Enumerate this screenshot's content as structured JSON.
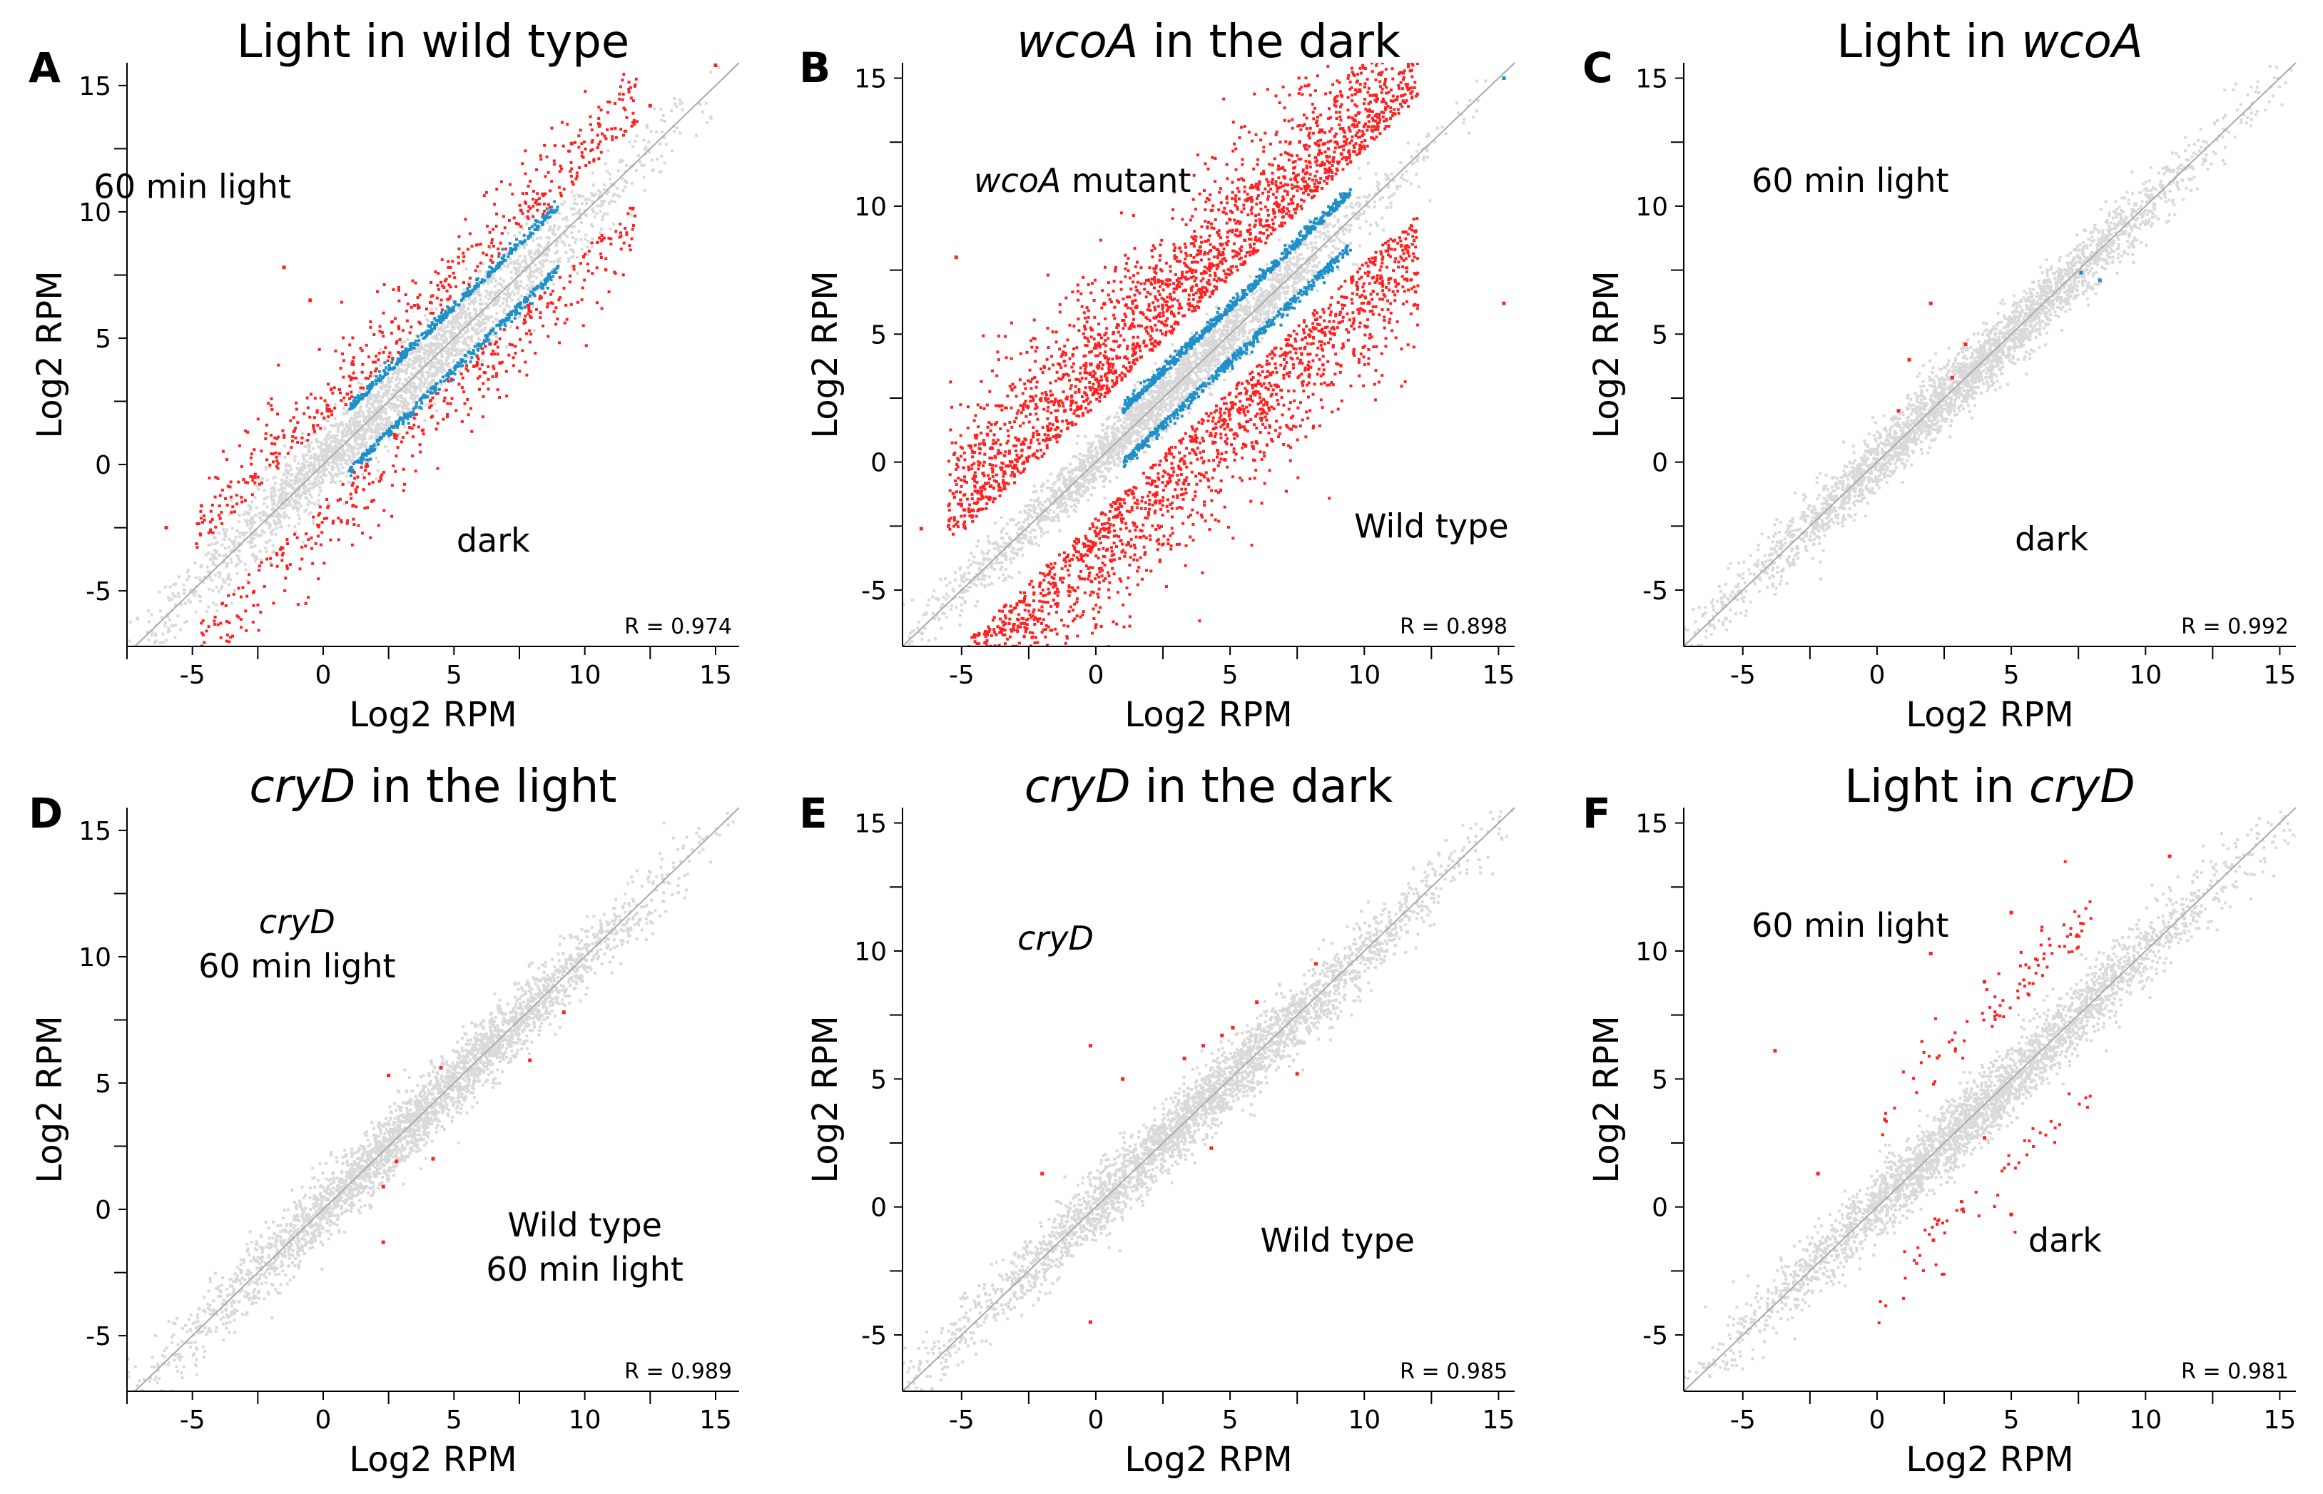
{
  "chart_data": [
    {
      "type": "scatter",
      "panel": "A",
      "title": [
        {
          "text": "Light in wild type",
          "italic": false
        }
      ],
      "xlabel": "Log2 RPM",
      "ylabel": "Log2 RPM",
      "xlim": [
        -7.5,
        15.9
      ],
      "ylim": [
        -7.2,
        15.9
      ],
      "xticks": [
        -5,
        0,
        5,
        10,
        15
      ],
      "yticks": [
        -5,
        0,
        5,
        10,
        15
      ],
      "grid": false,
      "diagonal": true,
      "annotations": [
        {
          "lines": [
            [
              {
                "text": "60 min light",
                "italic": false
              }
            ]
          ],
          "x": -5,
          "y": 11
        },
        {
          "lines": [
            [
              {
                "text": "dark",
                "italic": false
              }
            ]
          ],
          "x": 6.5,
          "y": -3
        }
      ],
      "r_label": "R = 0.974",
      "point_clouds": [
        {
          "name": "not significant",
          "color": "#d9d9d9",
          "x_range": [
            -7.2,
            13
          ],
          "spread": 0.7,
          "count": 2600
        },
        {
          "name": "moderate change",
          "color": "#1f8fc9",
          "x_range": [
            1,
            9
          ],
          "offset": 1.1,
          "spread": 0.2,
          "count": 700
        },
        {
          "name": "significant change",
          "color": "#ff2020",
          "x_range": [
            -5,
            12
          ],
          "offset": 1.5,
          "spread": 1.3,
          "count": 900
        }
      ],
      "extra_points": [
        {
          "x": 15,
          "y": 15.8,
          "color": "#ff2020"
        },
        {
          "x": 12.5,
          "y": 14.2,
          "color": "#ff2020"
        },
        {
          "x": 9.5,
          "y": 12.7,
          "color": "#ff2020"
        },
        {
          "x": -1.5,
          "y": 7.8,
          "color": "#ff2020"
        },
        {
          "x": -0.5,
          "y": 6.5,
          "color": "#ff2020"
        },
        {
          "x": -6,
          "y": -2.5,
          "color": "#ff2020"
        },
        {
          "x": -7.1,
          "y": -6.1,
          "color": "#d9d9d9"
        }
      ]
    },
    {
      "type": "scatter",
      "panel": "B",
      "title": [
        {
          "text": "wcoA",
          "italic": true
        },
        {
          "text": " in the dark",
          "italic": false
        }
      ],
      "xlabel": "Log2 RPM",
      "ylabel": "Log2 RPM",
      "xlim": [
        -7.2,
        15.6
      ],
      "ylim": [
        -7.2,
        15.6
      ],
      "xticks": [
        -5,
        0,
        5,
        10,
        15
      ],
      "yticks": [
        -5,
        0,
        5,
        10,
        15
      ],
      "grid": false,
      "diagonal": true,
      "annotations": [
        {
          "lines": [
            [
              {
                "text": "wcoA",
                "italic": true
              },
              {
                "text": " mutant",
                "italic": false
              }
            ]
          ],
          "x": -0.5,
          "y": 11
        },
        {
          "lines": [
            [
              {
                "text": "Wild type",
                "italic": false
              }
            ]
          ],
          "x": 12.5,
          "y": -2.5
        }
      ],
      "r_label": "R = 0.898",
      "point_clouds": [
        {
          "name": "not significant",
          "color": "#d9d9d9",
          "x_range": [
            -6.8,
            12
          ],
          "spread": 0.5,
          "count": 2600
        },
        {
          "name": "moderate change",
          "color": "#1f8fc9",
          "x_range": [
            1,
            9.5
          ],
          "offset": 0.9,
          "spread": 0.2,
          "count": 1100
        },
        {
          "name": "significant change",
          "color": "#ff2020",
          "x_range": [
            -5.5,
            12
          ],
          "offset": 2.2,
          "spread": 2.2,
          "count": 4000
        }
      ],
      "extra_points": [
        {
          "x": 15.2,
          "y": 15,
          "color": "#1f8fc9"
        },
        {
          "x": 15.2,
          "y": 6.2,
          "color": "#ff2020"
        },
        {
          "x": -6.5,
          "y": -2.6,
          "color": "#ff2020"
        },
        {
          "x": -5.2,
          "y": 8,
          "color": "#ff2020"
        }
      ]
    },
    {
      "type": "scatter",
      "panel": "C",
      "title": [
        {
          "text": "Light in ",
          "italic": false
        },
        {
          "text": "wcoA",
          "italic": true
        }
      ],
      "xlabel": "Log2 RPM",
      "ylabel": "Log2 RPM",
      "xlim": [
        -7.2,
        15.6
      ],
      "ylim": [
        -7.2,
        15.6
      ],
      "xticks": [
        -5,
        0,
        5,
        10,
        15
      ],
      "yticks": [
        -5,
        0,
        5,
        10,
        15
      ],
      "grid": false,
      "diagonal": true,
      "annotations": [
        {
          "lines": [
            [
              {
                "text": "60 min light",
                "italic": false
              }
            ]
          ],
          "x": -1,
          "y": 11
        },
        {
          "lines": [
            [
              {
                "text": "dark",
                "italic": false
              }
            ]
          ],
          "x": 6.5,
          "y": -3
        }
      ],
      "r_label": "R = 0.992",
      "point_clouds": [
        {
          "name": "not significant",
          "color": "#d9d9d9",
          "x_range": [
            -7,
            13.5
          ],
          "spread": 0.55,
          "count": 3000
        }
      ],
      "extra_points": [
        {
          "x": 1.2,
          "y": 4,
          "color": "#ff2020"
        },
        {
          "x": 2,
          "y": 6.2,
          "color": "#ff2020"
        },
        {
          "x": 0.8,
          "y": 2,
          "color": "#ff2020"
        },
        {
          "x": 2.8,
          "y": 3.3,
          "color": "#ff2020"
        },
        {
          "x": 3.3,
          "y": 4.6,
          "color": "#ff2020"
        },
        {
          "x": 7.6,
          "y": 7.4,
          "color": "#1f8fc9"
        },
        {
          "x": 8.3,
          "y": 7.1,
          "color": "#1f8fc9"
        }
      ]
    },
    {
      "type": "scatter",
      "panel": "D",
      "title": [
        {
          "text": "cryD",
          "italic": true
        },
        {
          "text": " in the light",
          "italic": false
        }
      ],
      "xlabel": "Log2 RPM",
      "ylabel": "Log2 RPM",
      "xlim": [
        -7.5,
        15.9
      ],
      "ylim": [
        -7.2,
        15.9
      ],
      "xticks": [
        -5,
        0,
        5,
        10,
        15
      ],
      "yticks": [
        -5,
        0,
        5,
        10,
        15
      ],
      "grid": false,
      "diagonal": true,
      "annotations": [
        {
          "lines": [
            [
              {
                "text": "cryD",
                "italic": true
              }
            ],
            [
              {
                "text": "60 min light",
                "italic": false
              }
            ]
          ],
          "x": -1,
          "y": 10.5
        },
        {
          "lines": [
            [
              {
                "text": "Wild type",
                "italic": false
              }
            ],
            [
              {
                "text": "60 min light",
                "italic": false
              }
            ]
          ],
          "x": 10,
          "y": -1.5
        }
      ],
      "r_label": "R = 0.989",
      "point_clouds": [
        {
          "name": "not significant",
          "color": "#d9d9d9",
          "x_range": [
            -7.2,
            14.5
          ],
          "spread": 0.6,
          "count": 3000
        }
      ],
      "extra_points": [
        {
          "x": 2.5,
          "y": 5.3,
          "color": "#ff2020"
        },
        {
          "x": 4.5,
          "y": 5.6,
          "color": "#ff2020"
        },
        {
          "x": 2.3,
          "y": -1.3,
          "color": "#ff2020"
        },
        {
          "x": 2.8,
          "y": 1.9,
          "color": "#ff2020"
        },
        {
          "x": 4.2,
          "y": 2,
          "color": "#ff2020"
        },
        {
          "x": 7.9,
          "y": 5.9,
          "color": "#ff2020"
        },
        {
          "x": 9.2,
          "y": 7.8,
          "color": "#ff2020"
        },
        {
          "x": 2.3,
          "y": 0.9,
          "color": "#ff2020"
        }
      ]
    },
    {
      "type": "scatter",
      "panel": "E",
      "title": [
        {
          "text": "cryD",
          "italic": true
        },
        {
          "text": " in the dark",
          "italic": false
        }
      ],
      "xlabel": "Log2 RPM",
      "ylabel": "Log2 RPM",
      "xlim": [
        -7.2,
        15.6
      ],
      "ylim": [
        -7.2,
        15.6
      ],
      "xticks": [
        -5,
        0,
        5,
        10,
        15
      ],
      "yticks": [
        -5,
        0,
        5,
        10,
        15
      ],
      "grid": false,
      "diagonal": true,
      "annotations": [
        {
          "lines": [
            [
              {
                "text": "cryD",
                "italic": true
              }
            ]
          ],
          "x": -1.5,
          "y": 10.5
        },
        {
          "lines": [
            [
              {
                "text": "Wild type",
                "italic": false
              }
            ]
          ],
          "x": 9,
          "y": -1.3
        }
      ],
      "r_label": "R = 0.985",
      "point_clouds": [
        {
          "name": "not significant",
          "color": "#d9d9d9",
          "x_range": [
            -7,
            14.5
          ],
          "spread": 0.6,
          "count": 3000
        }
      ],
      "extra_points": [
        {
          "x": -0.2,
          "y": 6.3,
          "color": "#ff2020"
        },
        {
          "x": 1,
          "y": 5,
          "color": "#ff2020"
        },
        {
          "x": 3.3,
          "y": 5.8,
          "color": "#ff2020"
        },
        {
          "x": 4.7,
          "y": 6.7,
          "color": "#ff2020"
        },
        {
          "x": 5.1,
          "y": 7,
          "color": "#ff2020"
        },
        {
          "x": 6,
          "y": 8,
          "color": "#ff2020"
        },
        {
          "x": 7.5,
          "y": 5.2,
          "color": "#ff2020"
        },
        {
          "x": -0.2,
          "y": -4.5,
          "color": "#ff2020"
        },
        {
          "x": 4.3,
          "y": 2.3,
          "color": "#ff2020"
        },
        {
          "x": 8.2,
          "y": 9.5,
          "color": "#ff2020"
        },
        {
          "x": 4,
          "y": 6.3,
          "color": "#ff2020"
        },
        {
          "x": -2,
          "y": 1.3,
          "color": "#ff2020"
        }
      ]
    },
    {
      "type": "scatter",
      "panel": "F",
      "title": [
        {
          "text": "Light in ",
          "italic": false
        },
        {
          "text": "cryD",
          "italic": true
        }
      ],
      "xlabel": "Log2 RPM",
      "ylabel": "Log2 RPM",
      "xlim": [
        -7.2,
        15.6
      ],
      "ylim": [
        -7.2,
        15.6
      ],
      "xticks": [
        -5,
        0,
        5,
        10,
        15
      ],
      "yticks": [
        -5,
        0,
        5,
        10,
        15
      ],
      "grid": false,
      "diagonal": true,
      "annotations": [
        {
          "lines": [
            [
              {
                "text": "60 min light",
                "italic": false
              }
            ]
          ],
          "x": -1,
          "y": 11
        },
        {
          "lines": [
            [
              {
                "text": "dark",
                "italic": false
              }
            ]
          ],
          "x": 7,
          "y": -1.3
        }
      ],
      "r_label": "R = 0.981",
      "point_clouds": [
        {
          "name": "not significant",
          "color": "#d9d9d9",
          "x_range": [
            -6.8,
            14.5
          ],
          "spread": 0.6,
          "count": 3000
        },
        {
          "name": "significant change",
          "color": "#ff2020",
          "x_range": [
            0,
            8
          ],
          "offset": 2.6,
          "spread": 1.1,
          "count": 150
        }
      ],
      "extra_points": [
        {
          "x": 10.9,
          "y": 13.7,
          "color": "#ff2020"
        },
        {
          "x": 5,
          "y": 11.5,
          "color": "#ff2020"
        },
        {
          "x": -3.8,
          "y": 6.1,
          "color": "#ff2020"
        },
        {
          "x": 2,
          "y": 9.9,
          "color": "#ff2020"
        },
        {
          "x": 4,
          "y": 8.8,
          "color": "#ff2020"
        },
        {
          "x": 4,
          "y": 2.7,
          "color": "#ff2020"
        },
        {
          "x": 5,
          "y": -0.3,
          "color": "#ff2020"
        },
        {
          "x": 2.1,
          "y": -1.3,
          "color": "#ff2020"
        },
        {
          "x": -2.2,
          "y": 1.3,
          "color": "#ff2020"
        }
      ]
    }
  ]
}
